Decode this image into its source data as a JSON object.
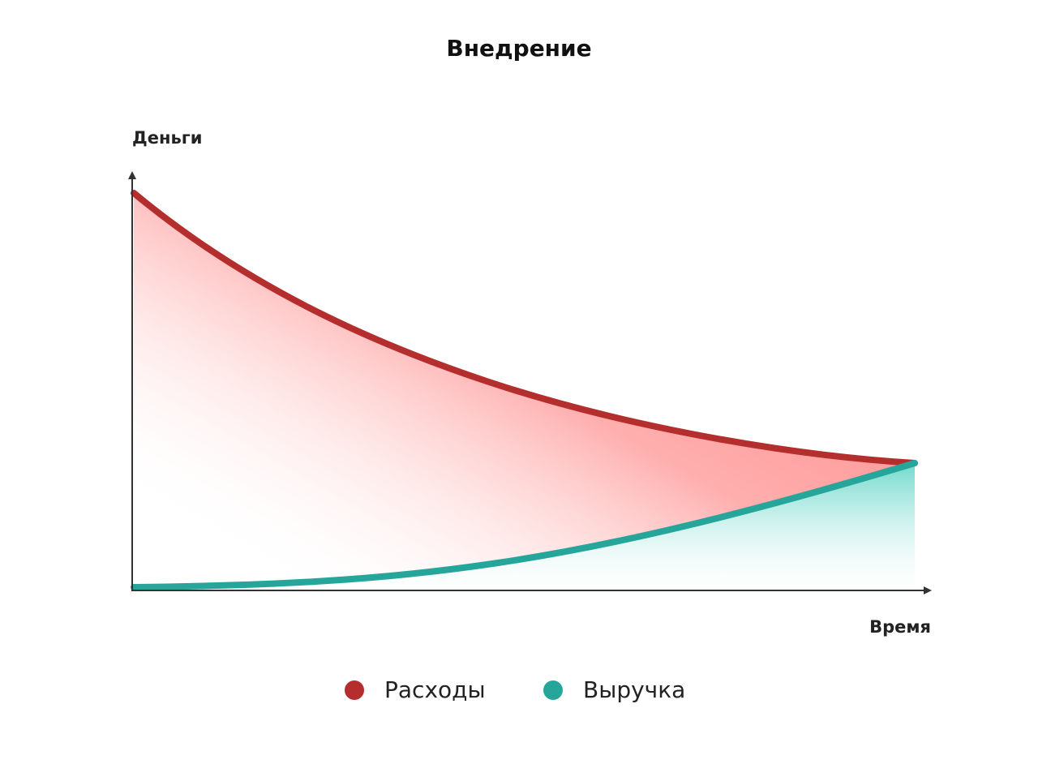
{
  "chart_data": {
    "type": "line",
    "title": "Внедрение",
    "y_label": "Деньги",
    "x_label": "Время",
    "series": [
      {
        "name": "Расходы",
        "color": "#b52e2e"
      },
      {
        "name": "Выручка",
        "color": "#26a69a"
      }
    ]
  }
}
